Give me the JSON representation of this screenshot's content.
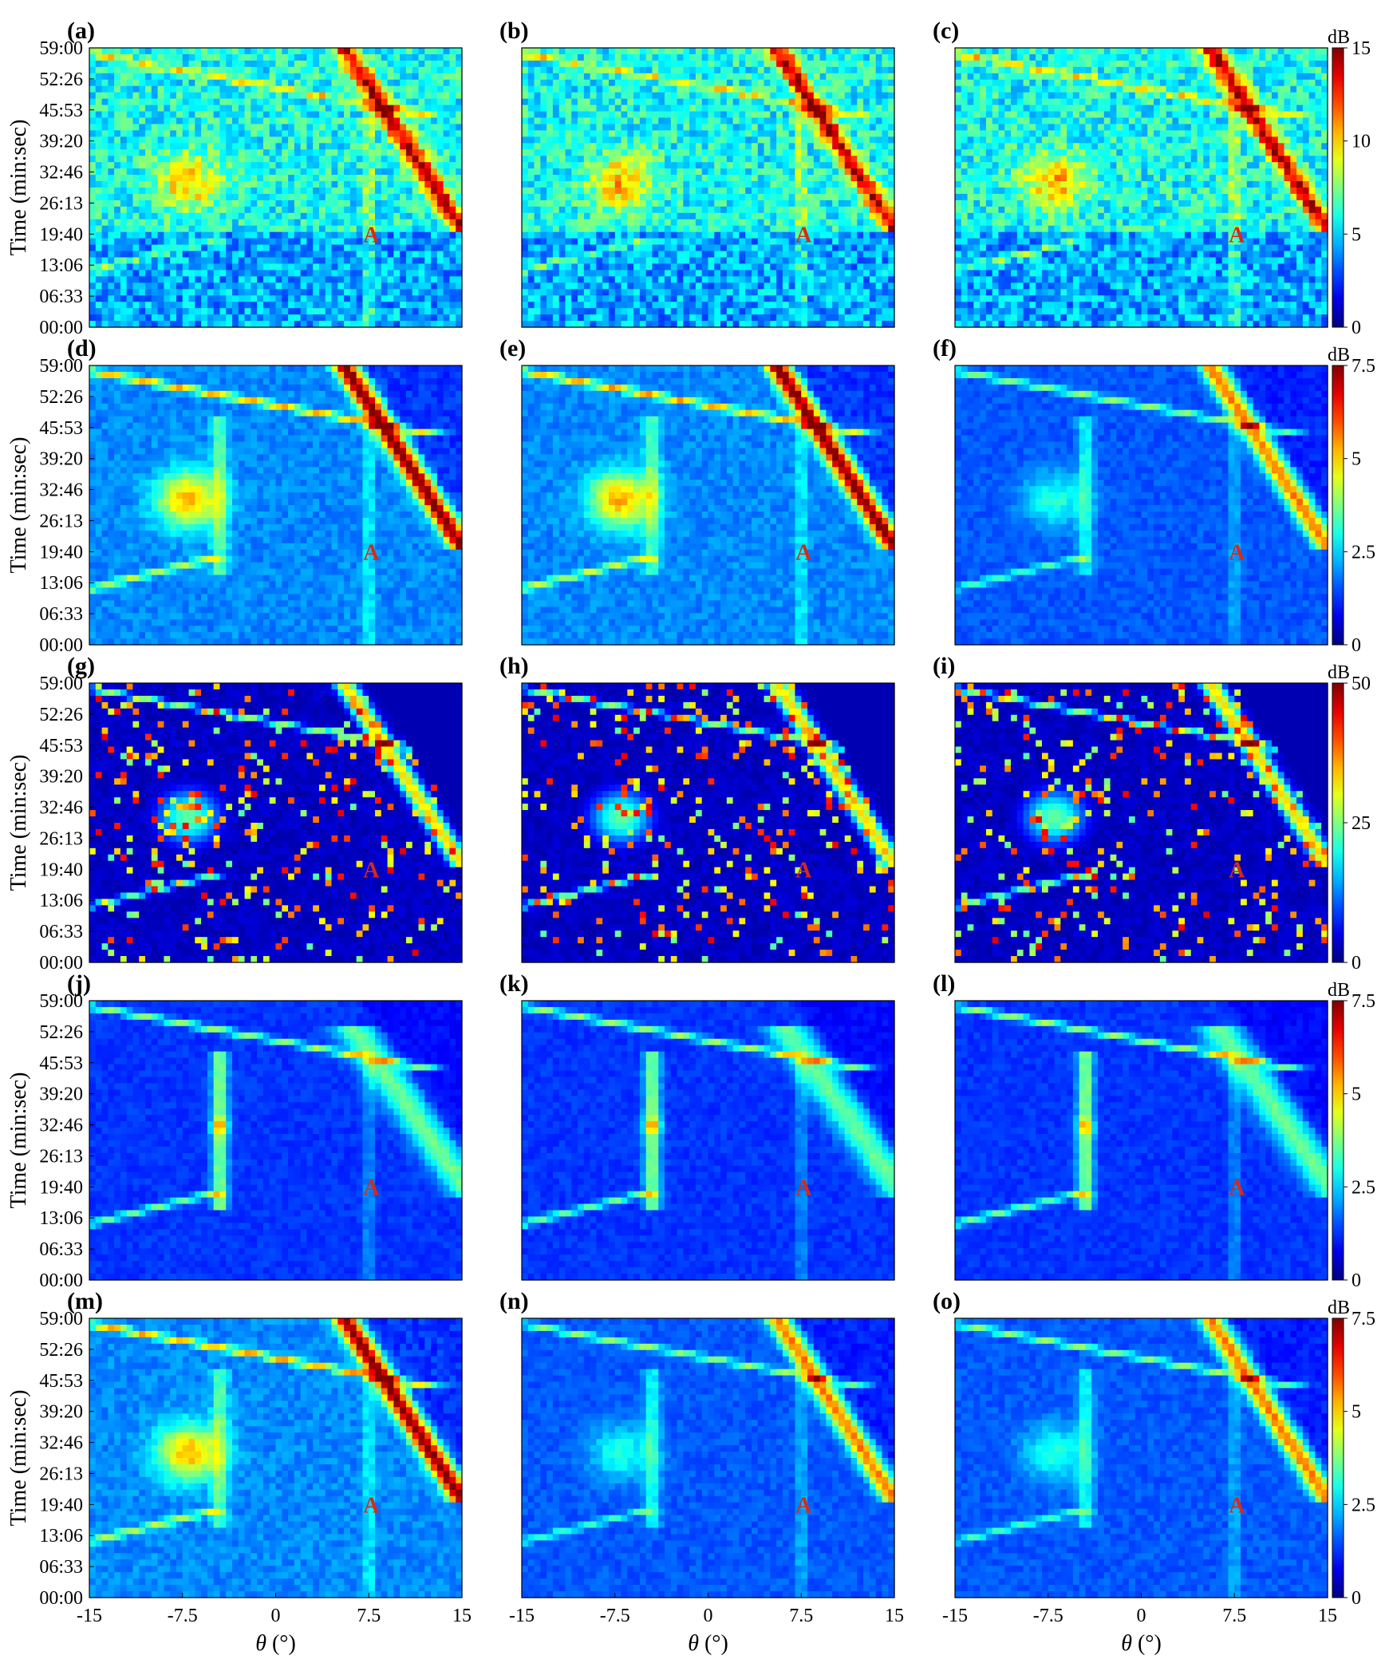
{
  "chart_data": {
    "type": "heatmap",
    "layout_grid": "5 rows x 3 columns",
    "shared_x_axis": {
      "label_symbol": "θ",
      "label_unit": "(°)",
      "ticks": [
        "-15",
        "-7.5",
        "0",
        "7.5",
        "15"
      ],
      "xlim": [
        -15,
        15
      ]
    },
    "shared_y_axis": {
      "label": "Time (min:sec)",
      "ticks": [
        "00:00",
        "06:33",
        "13:06",
        "19:40",
        "26:13",
        "32:46",
        "39:20",
        "45:53",
        "52:26",
        "59:00"
      ]
    },
    "annotation_text": "A",
    "annotation_position": {
      "theta": 7.5,
      "time": "19:40"
    },
    "colormap": "jet",
    "colorbar_rows": [
      {
        "unit": "dB",
        "ticks": [
          "0",
          "5",
          "10",
          "15"
        ],
        "range": [
          0,
          15
        ]
      },
      {
        "unit": "dB",
        "ticks": [
          "0",
          "2.5",
          "5",
          "7.5"
        ],
        "range": [
          0,
          7.5
        ]
      },
      {
        "unit": "dB",
        "ticks": [
          "0",
          "25",
          "50"
        ],
        "range": [
          0,
          50
        ]
      },
      {
        "unit": "dB",
        "ticks": [
          "0",
          "2.5",
          "5",
          "7.5"
        ],
        "range": [
          0,
          7.5
        ]
      },
      {
        "unit": "dB",
        "ticks": [
          "0",
          "2.5",
          "5",
          "7.5"
        ],
        "range": [
          0,
          7.5
        ]
      }
    ],
    "panels": [
      {
        "label": "(a)",
        "row": 0,
        "col": 0
      },
      {
        "label": "(b)",
        "row": 0,
        "col": 1
      },
      {
        "label": "(c)",
        "row": 0,
        "col": 2
      },
      {
        "label": "(d)",
        "row": 1,
        "col": 0
      },
      {
        "label": "(e)",
        "row": 1,
        "col": 1
      },
      {
        "label": "(f)",
        "row": 1,
        "col": 2
      },
      {
        "label": "(g)",
        "row": 2,
        "col": 0
      },
      {
        "label": "(h)",
        "row": 2,
        "col": 1
      },
      {
        "label": "(i)",
        "row": 2,
        "col": 2
      },
      {
        "label": "(j)",
        "row": 3,
        "col": 0
      },
      {
        "label": "(k)",
        "row": 3,
        "col": 1
      },
      {
        "label": "(l)",
        "row": 3,
        "col": 2
      },
      {
        "label": "(m)",
        "row": 4,
        "col": 0
      },
      {
        "label": "(n)",
        "row": 4,
        "col": 1
      },
      {
        "label": "(o)",
        "row": 4,
        "col": 2
      }
    ]
  }
}
